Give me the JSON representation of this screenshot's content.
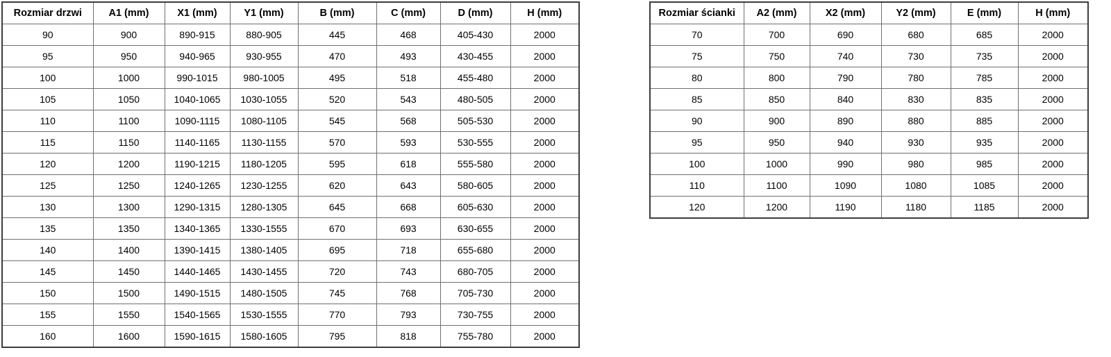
{
  "colors": {
    "background": "#ffffff",
    "border_inner": "#6f6f6f",
    "border_outer": "#3c3c3c",
    "text": "#000000"
  },
  "door_table": {
    "headers": [
      "Rozmiar drzwi",
      "A1 (mm)",
      "X1 (mm)",
      "Y1 (mm)",
      "B (mm)",
      "C (mm)",
      "D (mm)",
      "H (mm)"
    ],
    "rows": [
      [
        "90",
        "900",
        "890-915",
        "880-905",
        "445",
        "468",
        "405-430",
        "2000"
      ],
      [
        "95",
        "950",
        "940-965",
        "930-955",
        "470",
        "493",
        "430-455",
        "2000"
      ],
      [
        "100",
        "1000",
        "990-1015",
        "980-1005",
        "495",
        "518",
        "455-480",
        "2000"
      ],
      [
        "105",
        "1050",
        "1040-1065",
        "1030-1055",
        "520",
        "543",
        "480-505",
        "2000"
      ],
      [
        "110",
        "1100",
        "1090-1115",
        "1080-1105",
        "545",
        "568",
        "505-530",
        "2000"
      ],
      [
        "115",
        "1150",
        "1140-1165",
        "1130-1155",
        "570",
        "593",
        "530-555",
        "2000"
      ],
      [
        "120",
        "1200",
        "1190-1215",
        "1180-1205",
        "595",
        "618",
        "555-580",
        "2000"
      ],
      [
        "125",
        "1250",
        "1240-1265",
        "1230-1255",
        "620",
        "643",
        "580-605",
        "2000"
      ],
      [
        "130",
        "1300",
        "1290-1315",
        "1280-1305",
        "645",
        "668",
        "605-630",
        "2000"
      ],
      [
        "135",
        "1350",
        "1340-1365",
        "1330-1555",
        "670",
        "693",
        "630-655",
        "2000"
      ],
      [
        "140",
        "1400",
        "1390-1415",
        "1380-1405",
        "695",
        "718",
        "655-680",
        "2000"
      ],
      [
        "145",
        "1450",
        "1440-1465",
        "1430-1455",
        "720",
        "743",
        "680-705",
        "2000"
      ],
      [
        "150",
        "1500",
        "1490-1515",
        "1480-1505",
        "745",
        "768",
        "705-730",
        "2000"
      ],
      [
        "155",
        "1550",
        "1540-1565",
        "1530-1555",
        "770",
        "793",
        "730-755",
        "2000"
      ],
      [
        "160",
        "1600",
        "1590-1615",
        "1580-1605",
        "795",
        "818",
        "755-780",
        "2000"
      ]
    ]
  },
  "wall_table": {
    "headers": [
      "Rozmiar ścianki",
      "A2 (mm)",
      "X2 (mm)",
      "Y2 (mm)",
      "E (mm)",
      "H (mm)"
    ],
    "rows": [
      [
        "70",
        "700",
        "690",
        "680",
        "685",
        "2000"
      ],
      [
        "75",
        "750",
        "740",
        "730",
        "735",
        "2000"
      ],
      [
        "80",
        "800",
        "790",
        "780",
        "785",
        "2000"
      ],
      [
        "85",
        "850",
        "840",
        "830",
        "835",
        "2000"
      ],
      [
        "90",
        "900",
        "890",
        "880",
        "885",
        "2000"
      ],
      [
        "95",
        "950",
        "940",
        "930",
        "935",
        "2000"
      ],
      [
        "100",
        "1000",
        "990",
        "980",
        "985",
        "2000"
      ],
      [
        "110",
        "1100",
        "1090",
        "1080",
        "1085",
        "2000"
      ],
      [
        "120",
        "1200",
        "1190",
        "1180",
        "1185",
        "2000"
      ]
    ]
  }
}
